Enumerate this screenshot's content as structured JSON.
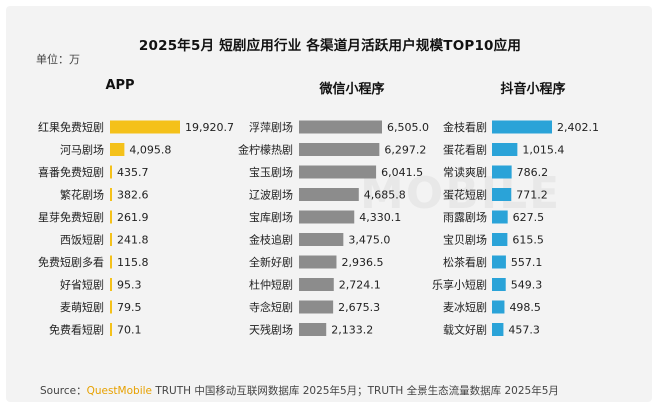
{
  "title": "2025年5月 短剧应用行业 各渠道月活跃用户规模TOP10应用",
  "unit": "单位：万",
  "watermark": "MOBILE",
  "source": {
    "prefix": "Source：",
    "brand": "QuestMobile",
    "rest": " TRUTH 中国移动互联网数据库 2025年5月；TRUTH 全景生态流量数据库 2025年5月"
  },
  "colors": {
    "app": "#f4c11a",
    "wechat": "#8c8c8c",
    "douyin": "#2aa3d8"
  },
  "chart_data": [
    {
      "type": "bar",
      "orientation": "horizontal",
      "title": "APP",
      "categories": [
        "红果免费短剧",
        "河马剧场",
        "喜番免费短剧",
        "繁花剧场",
        "星芽免费短剧",
        "西饭短剧",
        "免费短剧多看",
        "好省短剧",
        "麦萌短剧",
        "免费看短剧"
      ],
      "values": [
        19920.7,
        4095.8,
        435.7,
        382.6,
        261.9,
        241.8,
        115.8,
        95.3,
        79.5,
        70.1
      ],
      "value_labels": [
        "19,920.7",
        "4,095.8",
        "435.7",
        "382.6",
        "261.9",
        "241.8",
        "115.8",
        "95.3",
        "79.5",
        "70.1"
      ]
    },
    {
      "type": "bar",
      "orientation": "horizontal",
      "title": "微信小程序",
      "categories": [
        "浮萍剧场",
        "金柠檬热剧",
        "宝玉剧场",
        "辽波剧场",
        "宝库剧场",
        "金枝追剧",
        "全新好剧",
        "杜仲短剧",
        "寺念短剧",
        "天残剧场"
      ],
      "values": [
        6505.0,
        6297.2,
        6041.5,
        4685.8,
        4330.1,
        3475.0,
        2936.5,
        2724.1,
        2675.3,
        2133.2
      ],
      "value_labels": [
        "6,505.0",
        "6,297.2",
        "6,041.5",
        "4,685.8",
        "4,330.1",
        "3,475.0",
        "2,936.5",
        "2,724.1",
        "2,675.3",
        "2,133.2"
      ]
    },
    {
      "type": "bar",
      "orientation": "horizontal",
      "title": "抖音小程序",
      "categories": [
        "金枝看剧",
        "蛋花看剧",
        "常读爽剧",
        "蛋花短剧",
        "雨露剧场",
        "宝贝剧场",
        "松茶看剧",
        "乐享小短剧",
        "麦冰短剧",
        "载文好剧"
      ],
      "values": [
        2402.1,
        1015.4,
        786.2,
        771.2,
        627.5,
        615.5,
        557.1,
        549.3,
        498.5,
        457.3
      ],
      "value_labels": [
        "2,402.1",
        "1,015.4",
        "786.2",
        "771.2",
        "627.5",
        "615.5",
        "557.1",
        "549.3",
        "498.5",
        "457.3"
      ]
    }
  ]
}
